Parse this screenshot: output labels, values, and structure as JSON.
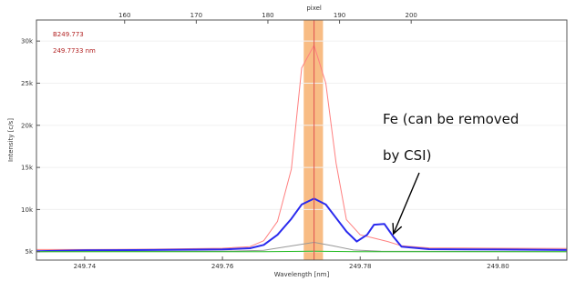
{
  "chart_data": {
    "type": "line",
    "xlabel": "Wavelength [nm]",
    "ylabel": "Intensity [c/s]",
    "top_axis_label": "pixel",
    "xlim": [
      249.733,
      249.81
    ],
    "ylim": [
      4000,
      32500
    ],
    "x_ticks": [
      249.74,
      249.76,
      249.78,
      249.8
    ],
    "x_tick_labels": [
      "249.74",
      "249.76",
      "249.78",
      "249.80"
    ],
    "y_ticks": [
      5000,
      10000,
      15000,
      20000,
      25000,
      30000
    ],
    "y_tick_labels": [
      "5k",
      "10k",
      "15k",
      "20k",
      "25k",
      "30k"
    ],
    "top_ticks": [
      160,
      170,
      180,
      190,
      200
    ],
    "top_tick_values": [
      249.7458,
      249.7562,
      249.7666,
      249.777,
      249.7874
    ],
    "top_tick_labels": [
      "160",
      "170",
      "180",
      "190",
      "200"
    ],
    "readout_lines": [
      "B249.773",
      "249.7733 nm"
    ],
    "highlight_band": [
      249.7718,
      249.7746
    ],
    "marker_line_x": 249.7733,
    "highlight_color": "#f5a65b",
    "marker_color": "#e05050",
    "series": [
      {
        "color": "#ff8080",
        "points": [
          [
            249.733,
            5250
          ],
          [
            249.74,
            5250
          ],
          [
            249.75,
            5300
          ],
          [
            249.76,
            5400
          ],
          [
            249.764,
            5600
          ],
          [
            249.766,
            6300
          ],
          [
            249.768,
            8600
          ],
          [
            249.77,
            14800
          ],
          [
            249.7715,
            26800
          ],
          [
            249.7733,
            29500
          ],
          [
            249.775,
            25000
          ],
          [
            249.7765,
            15500
          ],
          [
            249.778,
            8800
          ],
          [
            249.78,
            7000
          ],
          [
            249.782,
            6600
          ],
          [
            249.784,
            6200
          ],
          [
            249.786,
            5700
          ],
          [
            249.79,
            5450
          ],
          [
            249.8,
            5400
          ],
          [
            249.81,
            5380
          ]
        ]
      },
      {
        "color": "#2a2aee",
        "points": [
          [
            249.733,
            5050
          ],
          [
            249.74,
            5150
          ],
          [
            249.75,
            5200
          ],
          [
            249.76,
            5260
          ],
          [
            249.764,
            5400
          ],
          [
            249.766,
            5800
          ],
          [
            249.768,
            7000
          ],
          [
            249.77,
            8900
          ],
          [
            249.7715,
            10600
          ],
          [
            249.7733,
            11300
          ],
          [
            249.775,
            10600
          ],
          [
            249.7765,
            9000
          ],
          [
            249.778,
            7400
          ],
          [
            249.7795,
            6200
          ],
          [
            249.781,
            7000
          ],
          [
            249.782,
            8200
          ],
          [
            249.7835,
            8300
          ],
          [
            249.7848,
            6800
          ],
          [
            249.786,
            5600
          ],
          [
            249.79,
            5300
          ],
          [
            249.8,
            5250
          ],
          [
            249.81,
            5200
          ]
        ]
      },
      {
        "color": "#999999",
        "points": [
          [
            249.733,
            5000
          ],
          [
            249.76,
            5050
          ],
          [
            249.766,
            5150
          ],
          [
            249.769,
            5550
          ],
          [
            249.7733,
            6100
          ],
          [
            249.776,
            5700
          ],
          [
            249.779,
            5200
          ],
          [
            249.783,
            5050
          ],
          [
            249.81,
            5000
          ]
        ]
      },
      {
        "color": "#22bb22",
        "points": [
          [
            249.733,
            5000
          ],
          [
            249.766,
            5000
          ],
          [
            249.7733,
            5050
          ],
          [
            249.78,
            5000
          ],
          [
            249.81,
            5000
          ]
        ]
      }
    ],
    "annotation": {
      "lines": [
        "Fe (can be removed",
        "by CSI)"
      ],
      "arrow_target": [
        249.7835,
        8200
      ]
    }
  }
}
